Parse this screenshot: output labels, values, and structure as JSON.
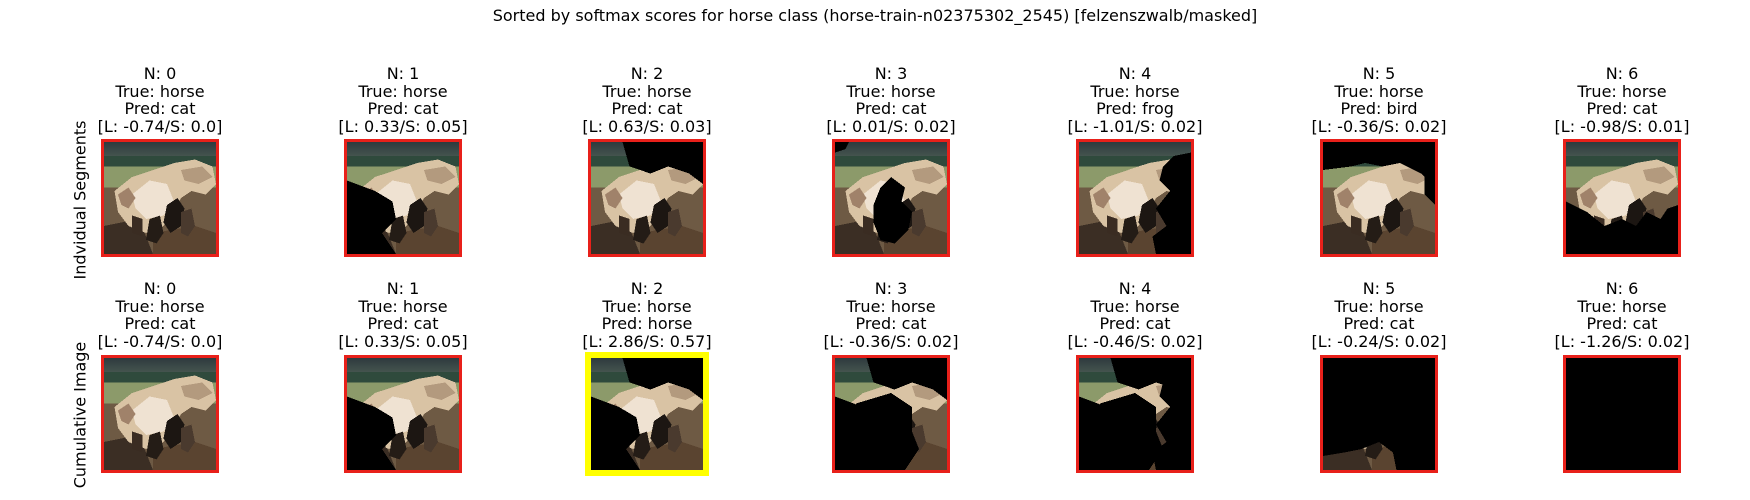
{
  "title": "Sorted by softmax scores for horse class (horse-train-n02375302_2545) [felzenszwalb/masked]",
  "colors": {
    "normal_border": "#e8201a",
    "highlight_border": "#ffff00",
    "mask": "#000000"
  },
  "chart_data": {
    "type": "image-grid",
    "title": "Sorted by softmax scores for horse class (horse-train-n02375302_2545) [felzenszwalb/masked]",
    "rows": [
      {
        "label": "Indvidual Segments",
        "panels": [
          {
            "n": "N: 0",
            "true": "True: horse",
            "pred": "Pred: cat",
            "score": "[L: -0.74/S: 0.0]",
            "highlight": false,
            "mask": "none"
          },
          {
            "n": "N: 1",
            "true": "True: horse",
            "pred": "Pred: cat",
            "score": "[L: 0.33/S: 0.05]",
            "highlight": false,
            "mask": "lower-left"
          },
          {
            "n": "N: 2",
            "true": "True: horse",
            "pred": "Pred: cat",
            "score": "[L: 0.63/S: 0.03]",
            "highlight": false,
            "mask": "top-right"
          },
          {
            "n": "N: 3",
            "true": "True: horse",
            "pred": "Pred: cat",
            "score": "[L: 0.01/S: 0.02]",
            "highlight": false,
            "mask": "center-body"
          },
          {
            "n": "N: 4",
            "true": "True: horse",
            "pred": "Pred: frog",
            "score": "[L: -1.01/S: 0.02]",
            "highlight": false,
            "mask": "right"
          },
          {
            "n": "N: 5",
            "true": "True: horse",
            "pred": "Pred: bird",
            "score": "[L: -0.36/S: 0.02]",
            "highlight": false,
            "mask": "top-band"
          },
          {
            "n": "N: 6",
            "true": "True: horse",
            "pred": "Pred: cat",
            "score": "[L: -0.98/S: 0.01]",
            "highlight": false,
            "mask": "bottom-right"
          }
        ]
      },
      {
        "label": "Cumulative Image",
        "panels": [
          {
            "n": "N: 0",
            "true": "True: horse",
            "pred": "Pred: cat",
            "score": "[L: -0.74/S: 0.0]",
            "highlight": false,
            "mask": "none"
          },
          {
            "n": "N: 1",
            "true": "True: horse",
            "pred": "Pred: cat",
            "score": "[L: 0.33/S: 0.05]",
            "highlight": false,
            "mask": "lower-left"
          },
          {
            "n": "N: 2",
            "true": "True: horse",
            "pred": "Pred: horse",
            "score": "[L: 2.86/S: 0.57]",
            "highlight": true,
            "mask": "cum2"
          },
          {
            "n": "N: 3",
            "true": "True: horse",
            "pred": "Pred: cat",
            "score": "[L: -0.36/S: 0.02]",
            "highlight": false,
            "mask": "cum3"
          },
          {
            "n": "N: 4",
            "true": "True: horse",
            "pred": "Pred: cat",
            "score": "[L: -0.46/S: 0.02]",
            "highlight": false,
            "mask": "cum4"
          },
          {
            "n": "N: 5",
            "true": "True: horse",
            "pred": "Pred: cat",
            "score": "[L: -0.24/S: 0.02]",
            "highlight": false,
            "mask": "cum5"
          },
          {
            "n": "N: 6",
            "true": "True: horse",
            "pred": "Pred: cat",
            "score": "[L: -1.26/S: 0.02]",
            "highlight": false,
            "mask": "all"
          }
        ]
      }
    ]
  }
}
